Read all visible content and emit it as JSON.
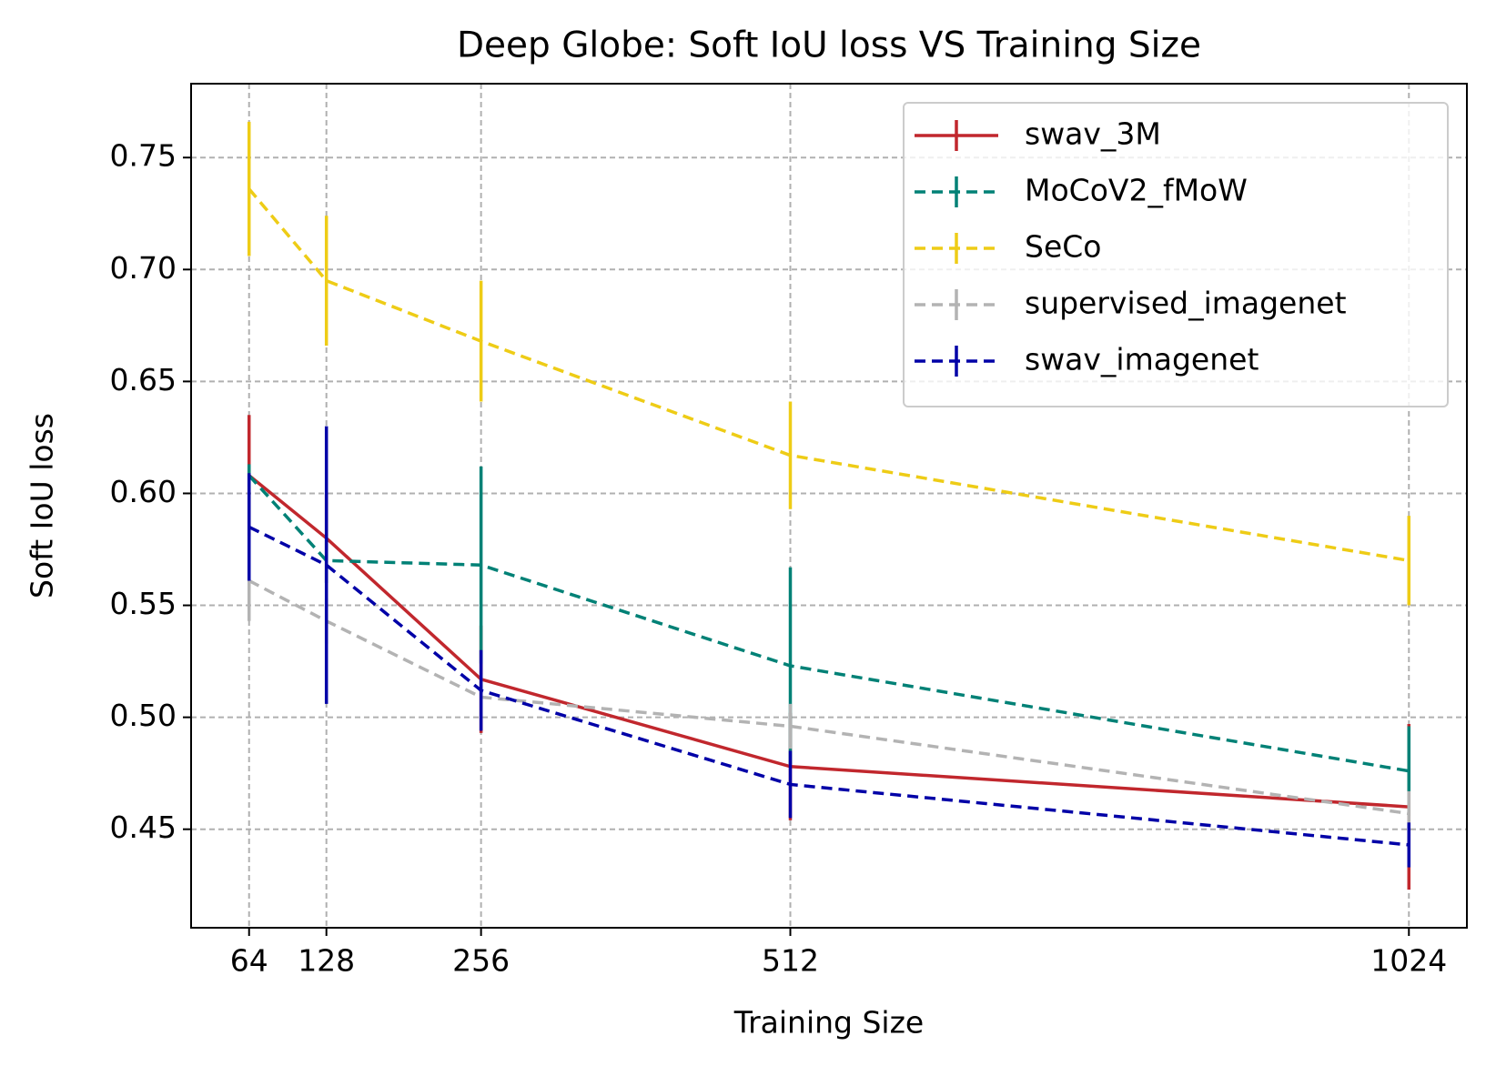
{
  "chart_data": {
    "type": "line",
    "title": "Deep Globe: Soft IoU loss VS Training Size",
    "xlabel": "Training Size",
    "ylabel": "Soft IoU loss",
    "x": [
      64,
      128,
      256,
      512,
      1024
    ],
    "xlim": [
      16,
      1072
    ],
    "xticks": [
      64,
      128,
      256,
      512,
      1024
    ],
    "ylim": [
      0.406,
      0.783
    ],
    "yticks": [
      {
        "value": 0.45,
        "label": "0.45"
      },
      {
        "value": 0.5,
        "label": "0.50"
      },
      {
        "value": 0.55,
        "label": "0.55"
      },
      {
        "value": 0.6,
        "label": "0.60"
      },
      {
        "value": 0.65,
        "label": "0.65"
      },
      {
        "value": 0.7,
        "label": "0.70"
      },
      0.75
    ],
    "grid": true,
    "legend": "upper right",
    "series": [
      {
        "name": "swav_3M",
        "color": "#c1272d",
        "dash": "solid",
        "values": [
          0.608,
          0.58,
          0.517,
          0.478,
          0.46
        ],
        "errors": [
          0.027,
          0.02,
          0.024,
          0.024,
          0.037
        ]
      },
      {
        "name": "MoCoV2_fMoW",
        "color": "#008176",
        "dash": "dashed",
        "values": [
          0.608,
          0.57,
          0.568,
          0.523,
          0.476
        ],
        "errors": [
          0.005,
          0.01,
          0.044,
          0.044,
          0.02
        ]
      },
      {
        "name": "SeCo",
        "color": "#eecc16",
        "dash": "dashed",
        "values": [
          0.736,
          0.695,
          0.668,
          0.617,
          0.57
        ],
        "errors": [
          0.03,
          0.029,
          0.027,
          0.024,
          0.02
        ]
      },
      {
        "name": "supervised_imagenet",
        "color": "#b3b3b3",
        "dash": "dashed",
        "values": [
          0.561,
          0.543,
          0.509,
          0.496,
          0.457
        ],
        "errors": [
          0.018,
          0.01,
          0.01,
          0.01,
          0.01
        ]
      },
      {
        "name": "swav_imagenet",
        "color": "#0000a7",
        "dash": "dashed",
        "values": [
          0.585,
          0.568,
          0.512,
          0.47,
          0.443
        ],
        "errors": [
          0.024,
          0.062,
          0.018,
          0.015,
          0.01
        ]
      }
    ]
  }
}
